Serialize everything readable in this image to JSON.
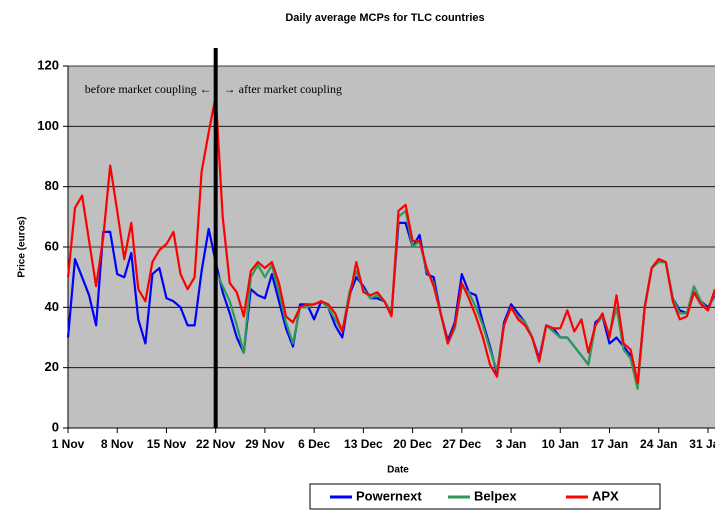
{
  "chart_data": {
    "type": "line",
    "title": "Daily average MCPs for TLC countries",
    "x_label": "Date",
    "y_label": "Price (euros)",
    "annotations": [
      "before market coupling ←",
      "→ after market coupling"
    ],
    "categories": [
      "1 Nov",
      null,
      null,
      null,
      null,
      null,
      null,
      "8 Nov",
      null,
      null,
      null,
      null,
      null,
      null,
      "15 Nov",
      null,
      null,
      null,
      null,
      null,
      null,
      "22 Nov",
      null,
      null,
      null,
      null,
      null,
      null,
      "29 Nov",
      null,
      null,
      null,
      null,
      null,
      null,
      "6 Dec",
      null,
      null,
      null,
      null,
      null,
      null,
      "13 Dec",
      null,
      null,
      null,
      null,
      null,
      null,
      "20 Dec",
      null,
      null,
      null,
      null,
      null,
      null,
      "27 Dec",
      null,
      null,
      null,
      null,
      null,
      null,
      "3 Jan",
      null,
      null,
      null,
      null,
      null,
      null,
      "10 Jan",
      null,
      null,
      null,
      null,
      null,
      null,
      "17 Jan",
      null,
      null,
      null,
      null,
      null,
      null,
      "24 Jan",
      null,
      null,
      null,
      null,
      null,
      null,
      "31 Jan",
      null
    ],
    "series": [
      {
        "name": "Powernext",
        "color": "#0000ff",
        "values": [
          30,
          56,
          50,
          44,
          34,
          65,
          65,
          51,
          50,
          58,
          36,
          28,
          51,
          53,
          43,
          42,
          40,
          34,
          34,
          52,
          66,
          55,
          45,
          38,
          30,
          25,
          46,
          44,
          43,
          51,
          42,
          33,
          27,
          41,
          41,
          36,
          42,
          40,
          34,
          30,
          44,
          50,
          47,
          43,
          43,
          42,
          38,
          68,
          68,
          60,
          64,
          51,
          50,
          38,
          29,
          35,
          51,
          45,
          44,
          35,
          27,
          18,
          35,
          41,
          38,
          35,
          30,
          23,
          34,
          33,
          30,
          30,
          27,
          24,
          21,
          35,
          37,
          28,
          30,
          27,
          24,
          14,
          40,
          53,
          56,
          55,
          43,
          39,
          38,
          45,
          42,
          40,
          44
        ]
      },
      {
        "name": "Belpex",
        "color": "#2e9a5a",
        "values": [
          null,
          null,
          null,
          null,
          null,
          null,
          null,
          null,
          null,
          null,
          null,
          null,
          null,
          null,
          null,
          null,
          null,
          null,
          null,
          null,
          null,
          52,
          47,
          42,
          34,
          25,
          50,
          54,
          50,
          54,
          45,
          35,
          28,
          40,
          40,
          41,
          42,
          40,
          36,
          32,
          45,
          52,
          46,
          43,
          44,
          42,
          38,
          70,
          72,
          60,
          62,
          52,
          48,
          38,
          28,
          33,
          47,
          45,
          40,
          34,
          26,
          19,
          34,
          40,
          37,
          35,
          30,
          22,
          34,
          32,
          30,
          30,
          27,
          24,
          21,
          34,
          37,
          31,
          40,
          26,
          23,
          13,
          40,
          53,
          55,
          55,
          43,
          38,
          38,
          47,
          42,
          39,
          45
        ]
      },
      {
        "name": "APX",
        "color": "#ff0000",
        "values": [
          50,
          73,
          77,
          62,
          47,
          63,
          87,
          72,
          56,
          68,
          46,
          42,
          55,
          59,
          61,
          65,
          51,
          46,
          50,
          85,
          98,
          110,
          70,
          48,
          45,
          37,
          52,
          55,
          53,
          55,
          48,
          37,
          35,
          40,
          41,
          41,
          42,
          41,
          38,
          32,
          43,
          55,
          45,
          44,
          45,
          42,
          37,
          72,
          74,
          62,
          62,
          53,
          47,
          38,
          28,
          34,
          48,
          43,
          37,
          30,
          21,
          17,
          34,
          40,
          36,
          34,
          30,
          22,
          34,
          33,
          33,
          39,
          32,
          36,
          25,
          34,
          38,
          30,
          44,
          28,
          26,
          15,
          40,
          53,
          56,
          55,
          42,
          36,
          37,
          45,
          41,
          39,
          46
        ]
      }
    ],
    "ylim": [
      0,
      120
    ],
    "yticks": [
      0,
      20,
      40,
      60,
      80,
      100,
      120
    ],
    "grid": true,
    "plot_background": "#c0c0c0",
    "legend": "bottom"
  }
}
